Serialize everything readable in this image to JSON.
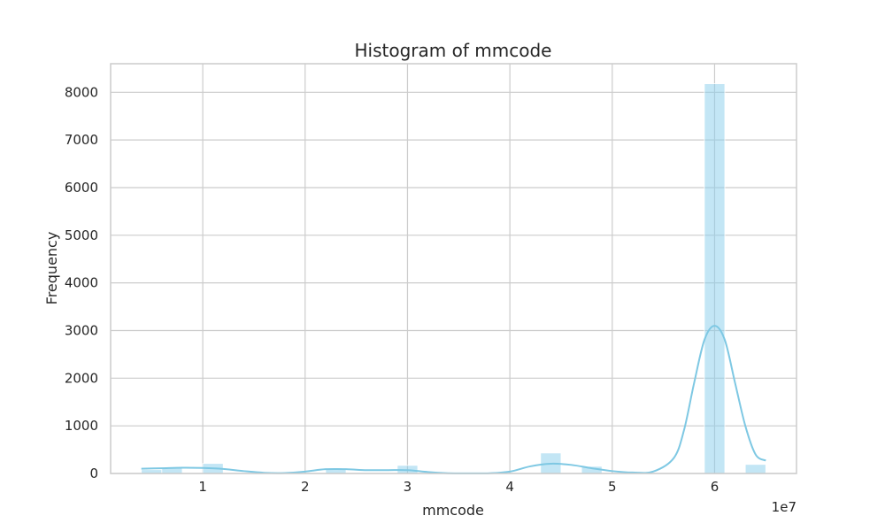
{
  "chart_data": {
    "type": "bar",
    "title": "Histogram of mmcode",
    "xlabel": "mmcode",
    "ylabel": "Frequency",
    "x_scale_note": "1e7",
    "xlim": [
      0.1,
      6.8
    ],
    "ylim": [
      0,
      8600
    ],
    "xticks": [
      1,
      2,
      3,
      4,
      5,
      6
    ],
    "yticks": [
      0,
      1000,
      2000,
      3000,
      4000,
      5000,
      6000,
      7000,
      8000
    ],
    "grid": true,
    "bar_color": "#87ceeb",
    "kde_color": "#7ec8e3",
    "bins": [
      {
        "x0": 0.4,
        "x1": 0.6,
        "value": 80
      },
      {
        "x0": 0.6,
        "x1": 0.8,
        "value": 110
      },
      {
        "x0": 1.0,
        "x1": 1.2,
        "value": 210
      },
      {
        "x0": 2.2,
        "x1": 2.4,
        "value": 90
      },
      {
        "x0": 2.9,
        "x1": 3.1,
        "value": 170
      },
      {
        "x0": 4.3,
        "x1": 4.5,
        "value": 430
      },
      {
        "x0": 4.7,
        "x1": 4.9,
        "value": 150
      },
      {
        "x0": 5.9,
        "x1": 6.1,
        "value": 8180
      },
      {
        "x0": 6.3,
        "x1": 6.5,
        "value": 190
      }
    ],
    "kde": {
      "x": [
        0.4,
        0.6,
        0.8,
        1.0,
        1.2,
        1.4,
        1.6,
        1.8,
        2.0,
        2.2,
        2.4,
        2.6,
        2.8,
        3.0,
        3.2,
        3.4,
        3.6,
        3.8,
        4.0,
        4.2,
        4.4,
        4.6,
        4.8,
        5.0,
        5.2,
        5.4,
        5.6,
        5.7,
        5.8,
        5.9,
        6.0,
        6.1,
        6.2,
        6.3,
        6.4,
        6.5
      ],
      "y": [
        100,
        110,
        120,
        115,
        95,
        50,
        15,
        10,
        40,
        90,
        90,
        70,
        70,
        70,
        30,
        5,
        2,
        5,
        40,
        150,
        205,
        180,
        110,
        50,
        20,
        40,
        320,
        900,
        1900,
        2800,
        3100,
        2800,
        1900,
        1000,
        400,
        270
      ]
    }
  }
}
